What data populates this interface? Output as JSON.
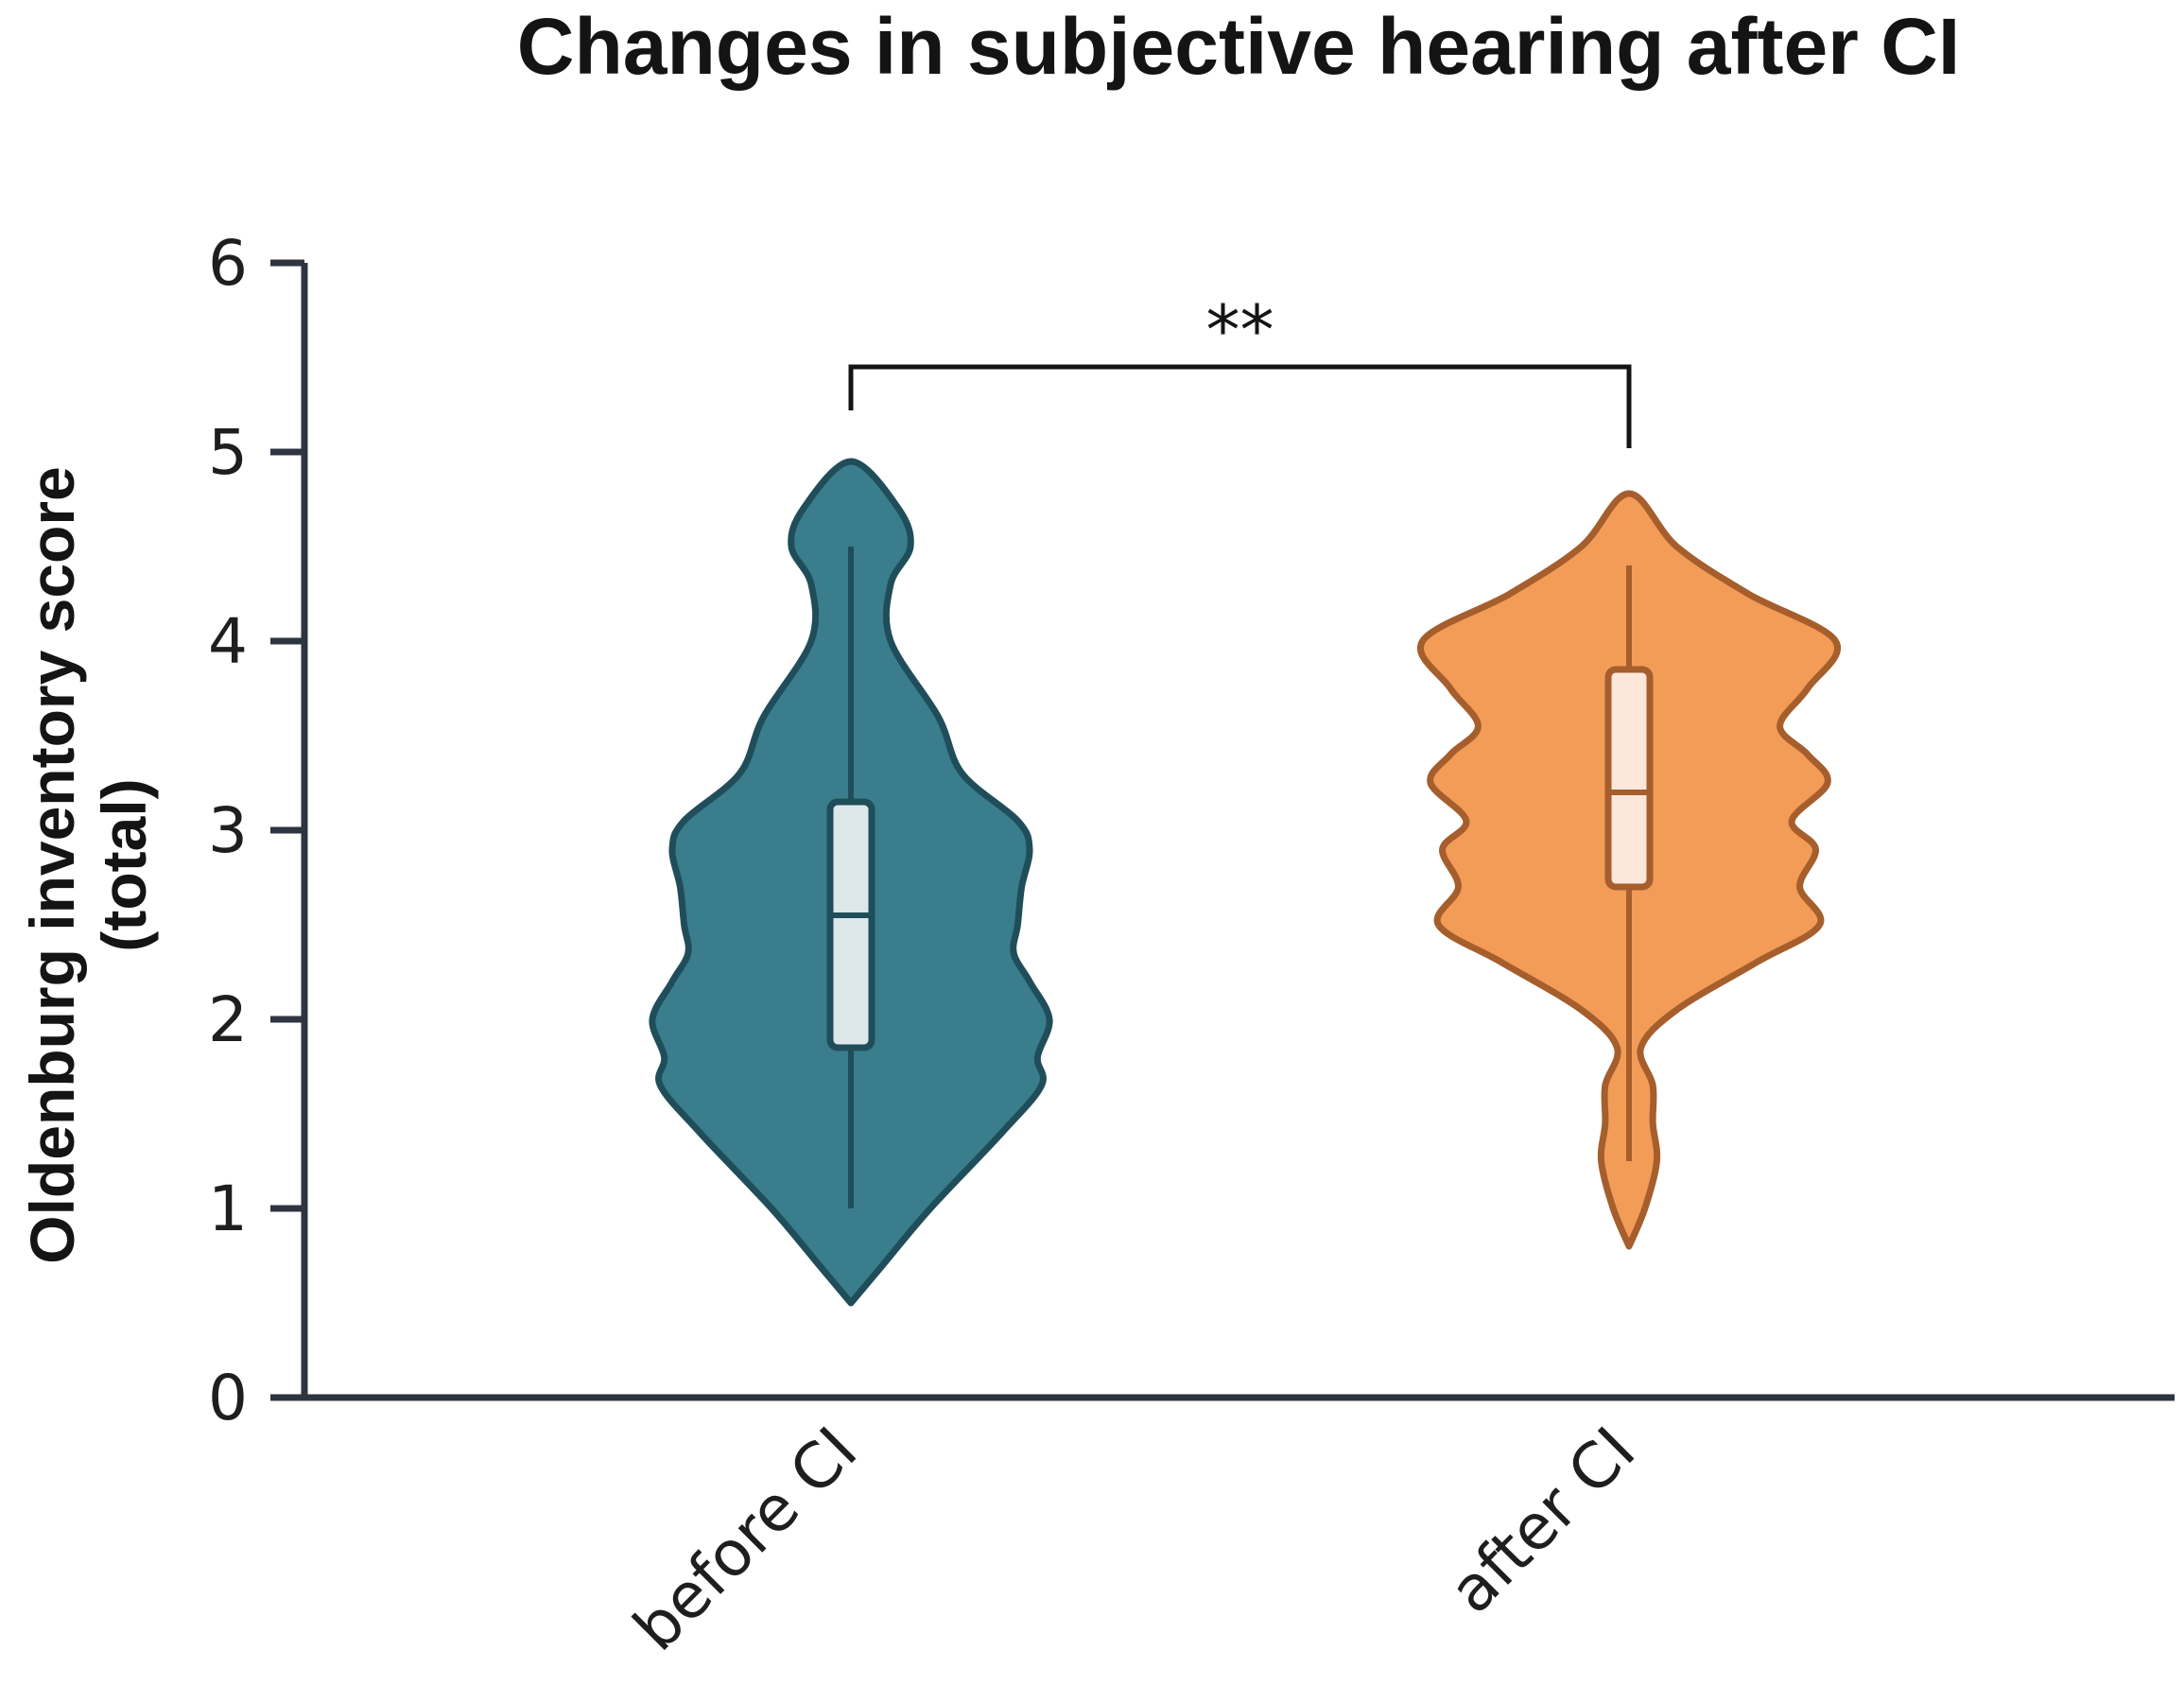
{
  "chart_data": {
    "type": "violin",
    "title": "Changes in subjective hearing after CI",
    "xlabel": "",
    "ylabel_lines": [
      "Oldenburg inventory score",
      "(total)"
    ],
    "ylim": [
      0,
      6
    ],
    "yticks": [
      0,
      1,
      2,
      3,
      4,
      5,
      6
    ],
    "grid": false,
    "categories": [
      "before CI",
      "after CI"
    ],
    "series": [
      {
        "category": "before CI",
        "fill": "#3A7D8C",
        "stroke": "#1F4E5A",
        "box_fill": "#DDE7EA",
        "min": 1.0,
        "q1": 1.85,
        "median": 2.55,
        "q3": 3.15,
        "max": 4.5,
        "density_profile": [
          [
            0.5,
            0
          ],
          [
            0.7,
            0.08
          ],
          [
            1.0,
            0.2
          ],
          [
            1.4,
            0.38
          ],
          [
            1.65,
            0.48
          ],
          [
            1.8,
            0.47
          ],
          [
            2.0,
            0.5
          ],
          [
            2.2,
            0.45
          ],
          [
            2.35,
            0.41
          ],
          [
            2.5,
            0.42
          ],
          [
            2.7,
            0.43
          ],
          [
            2.9,
            0.45
          ],
          [
            3.05,
            0.42
          ],
          [
            3.3,
            0.28
          ],
          [
            3.6,
            0.22
          ],
          [
            4.0,
            0.1
          ],
          [
            4.3,
            0.1
          ],
          [
            4.5,
            0.15
          ],
          [
            4.7,
            0.12
          ],
          [
            4.95,
            0
          ]
        ]
      },
      {
        "category": "after CI",
        "fill": "#F29C57",
        "stroke": "#A55E2C",
        "box_fill": "#FCE7DA",
        "min": 1.25,
        "q1": 2.7,
        "median": 3.2,
        "q3": 3.85,
        "max": 4.4,
        "density_profile": [
          [
            0.8,
            0
          ],
          [
            1.0,
            0.04
          ],
          [
            1.25,
            0.07
          ],
          [
            1.45,
            0.06
          ],
          [
            1.65,
            0.06
          ],
          [
            1.85,
            0.03
          ],
          [
            2.05,
            0.12
          ],
          [
            2.3,
            0.32
          ],
          [
            2.5,
            0.48
          ],
          [
            2.7,
            0.43
          ],
          [
            2.9,
            0.47
          ],
          [
            3.05,
            0.41
          ],
          [
            3.25,
            0.5
          ],
          [
            3.4,
            0.45
          ],
          [
            3.55,
            0.38
          ],
          [
            3.75,
            0.45
          ],
          [
            4.0,
            0.52
          ],
          [
            4.25,
            0.3
          ],
          [
            4.5,
            0.12
          ],
          [
            4.78,
            0
          ]
        ]
      }
    ],
    "annotations": [
      {
        "type": "significance-bracket",
        "from": "before CI",
        "to": "after CI",
        "label": "**"
      }
    ]
  }
}
